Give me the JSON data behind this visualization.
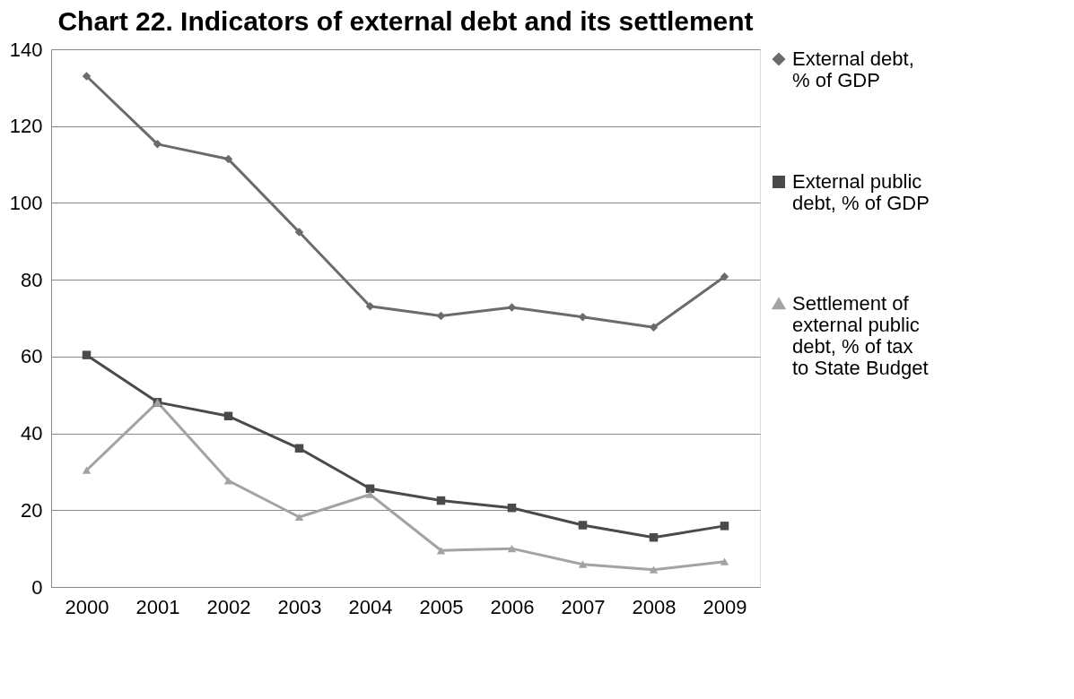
{
  "chart_data": {
    "type": "line",
    "title": "Chart 22. Indicators of external debt and its settlement",
    "categories": [
      "2000",
      "2001",
      "2002",
      "2003",
      "2004",
      "2005",
      "2006",
      "2007",
      "2008",
      "2009"
    ],
    "series": [
      {
        "name": "External debt, % of GDP",
        "color": "#6b6b6b",
        "marker": "diamond",
        "values": [
          133.0,
          115.3,
          111.4,
          92.4,
          73.1,
          70.6,
          72.8,
          70.3,
          67.6,
          80.8
        ]
      },
      {
        "name": "External public debt, % of GDP",
        "color": "#4a4a4a",
        "marker": "square",
        "values": [
          60.4,
          48.1,
          44.5,
          36.1,
          25.6,
          22.5,
          20.6,
          16.1,
          12.9,
          15.9
        ]
      },
      {
        "name": "Settlement of external public debt, % of tax to State Budget",
        "color": "#a3a3a3",
        "marker": "triangle",
        "values": [
          30.4,
          48.1,
          27.7,
          18.2,
          24.1,
          9.5,
          10.0,
          5.9,
          4.5,
          6.6
        ]
      }
    ],
    "ylim": [
      0,
      140
    ],
    "yticks": [
      0,
      20,
      40,
      60,
      80,
      100,
      120,
      140
    ],
    "grid": "y",
    "legend": "right"
  }
}
